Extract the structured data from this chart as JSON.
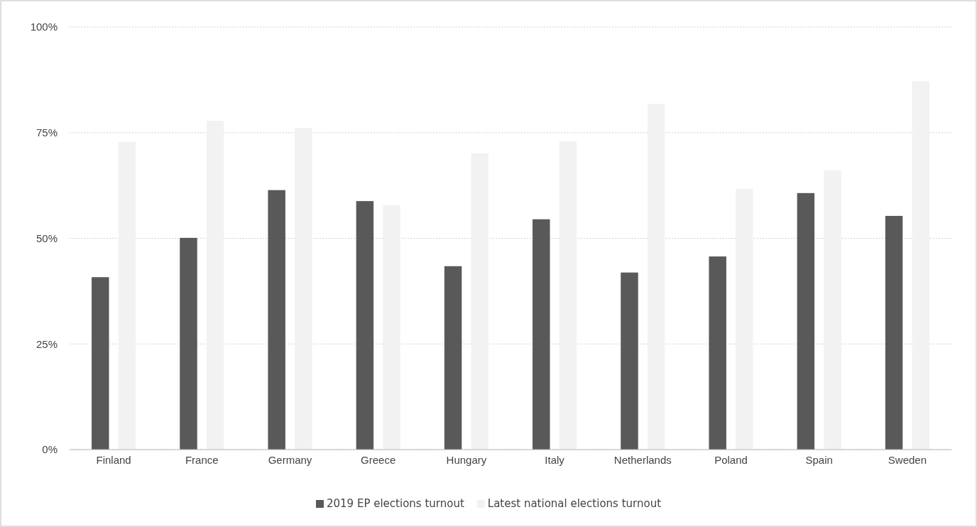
{
  "chart_data": {
    "type": "bar",
    "categories": [
      "Finland",
      "France",
      "Germany",
      "Greece",
      "Hungary",
      "Italy",
      "Netherlands",
      "Poland",
      "Spain",
      "Sweden"
    ],
    "series": [
      {
        "name": "2019 EP elections turnout",
        "color": "#595959",
        "values": [
          40.8,
          50.1,
          61.4,
          58.8,
          43.4,
          54.5,
          41.9,
          45.7,
          60.7,
          55.3
        ]
      },
      {
        "name": "Latest national elections turnout",
        "color": "#f2f2f2",
        "values": [
          72.8,
          77.8,
          76.1,
          57.8,
          70.1,
          72.9,
          81.8,
          61.7,
          66.1,
          87.2
        ]
      }
    ],
    "ylim": [
      0,
      100
    ],
    "yticks": [
      {
        "value": 0,
        "label": "0%"
      },
      {
        "value": 25,
        "label": "25%"
      },
      {
        "value": 50,
        "label": "50%"
      },
      {
        "value": 75,
        "label": "75%"
      },
      {
        "value": 100,
        "label": "100%"
      }
    ],
    "grid": "y",
    "legend": "bottom"
  }
}
